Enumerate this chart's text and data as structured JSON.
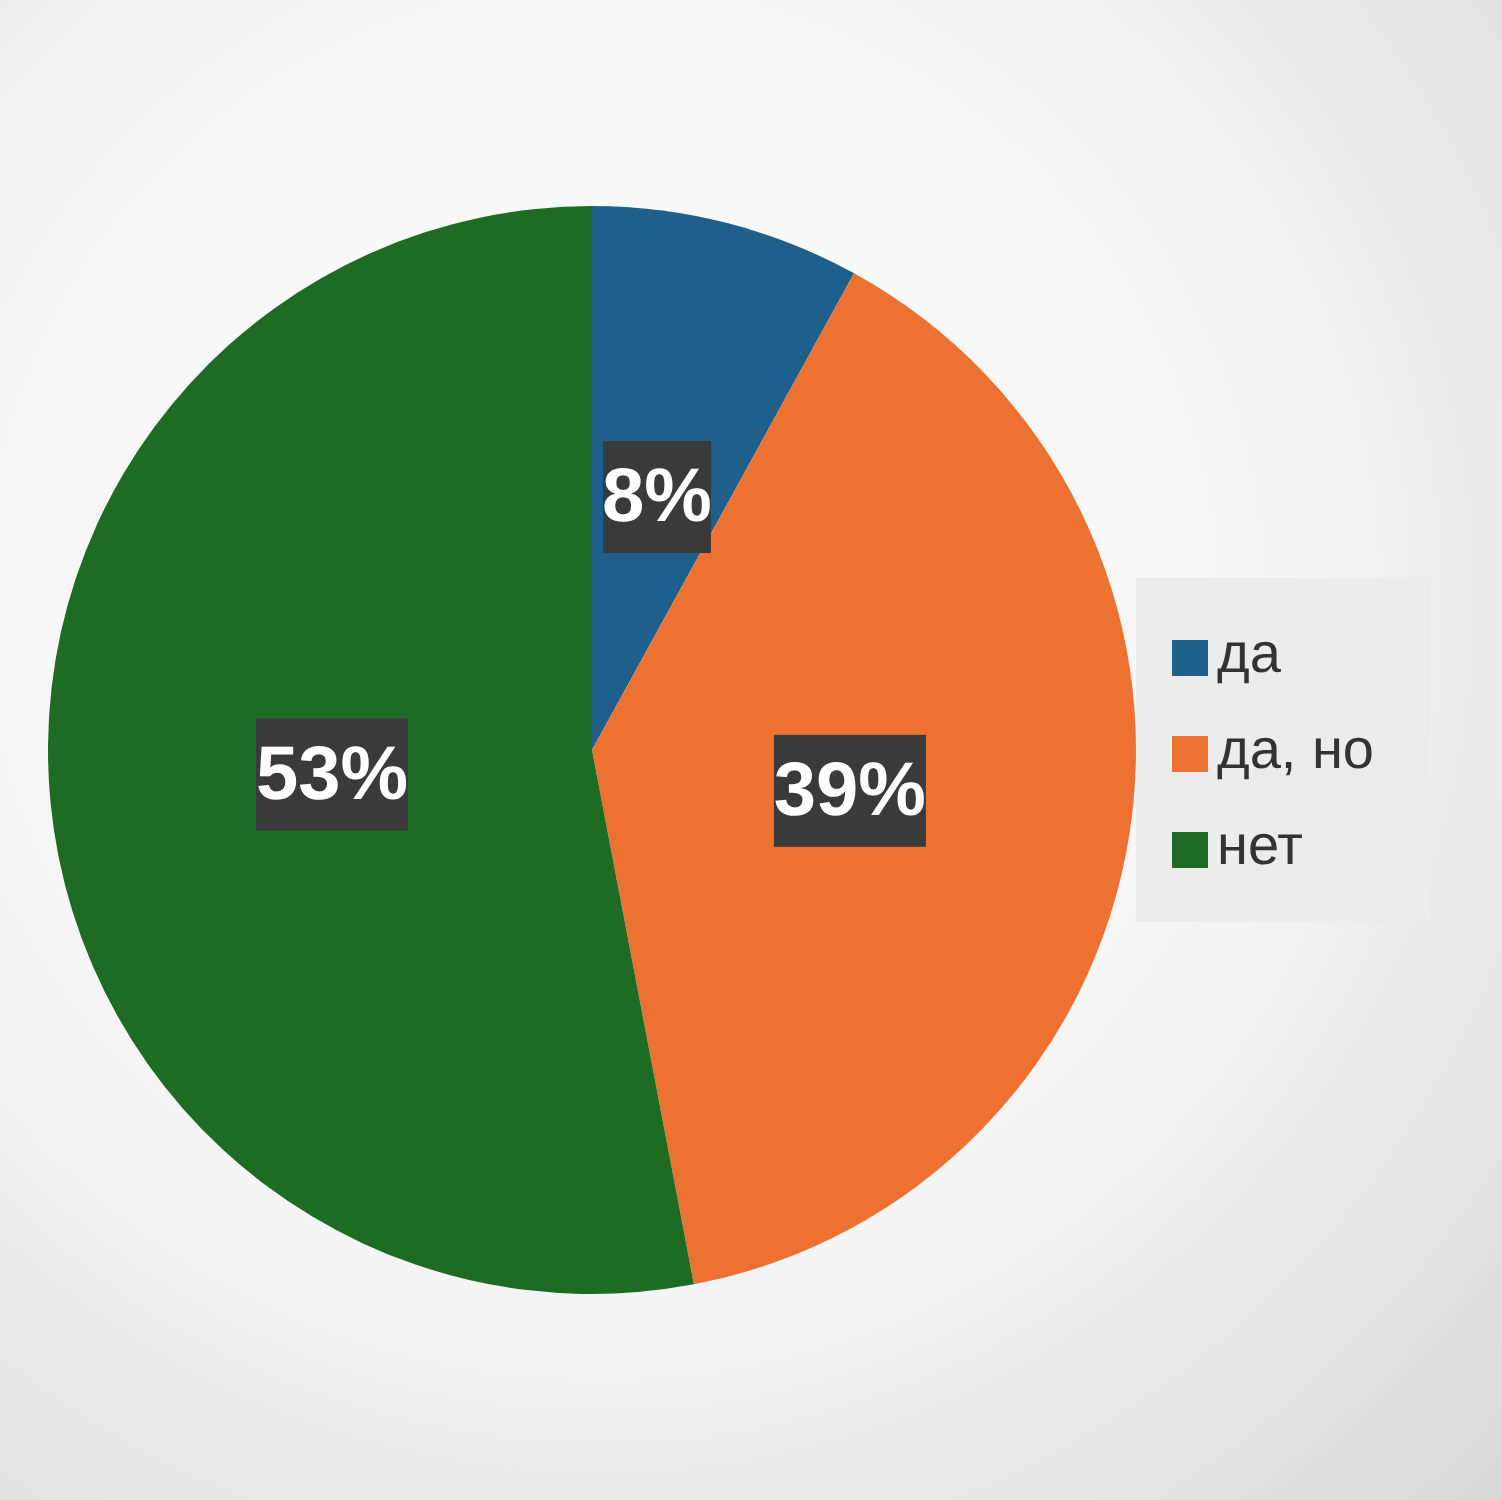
{
  "chart_data": {
    "type": "pie",
    "categories": [
      "да",
      "да, но",
      "нет"
    ],
    "values": [
      8,
      39,
      53
    ],
    "colors": [
      "#1f5f8b",
      "#ed7232",
      "#1e6b24"
    ],
    "value_labels": [
      "8%",
      "39%",
      "53%"
    ],
    "legend": "right"
  }
}
